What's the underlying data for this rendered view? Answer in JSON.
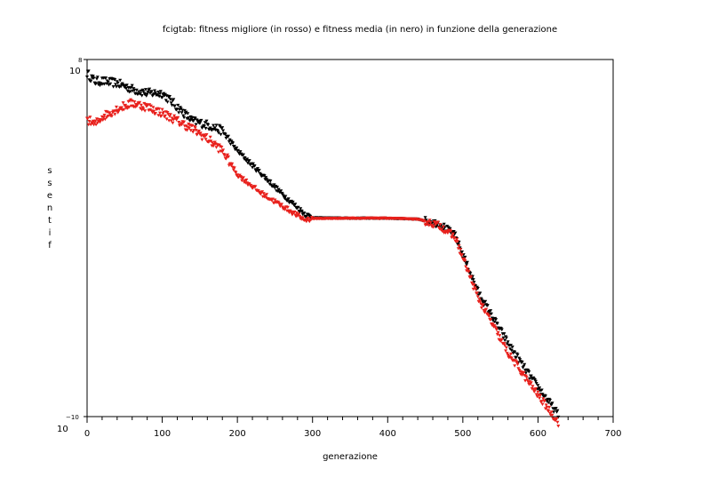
{
  "chart_data": {
    "type": "scatter",
    "title": "fcigtab: fitness migliore (in rosso) e fitness media (in nero) in funzione della generazione",
    "xlabel": "generazione",
    "ylabel": "fitness",
    "ylabel_letters": [
      "s",
      "s",
      "e",
      "n",
      "t",
      "i",
      "f"
    ],
    "xlim": [
      0,
      700
    ],
    "x_ticks": [
      "0",
      "100",
      "200",
      "300",
      "400",
      "500",
      "600",
      "700"
    ],
    "y_scale": "log",
    "ylim_exponent": [
      -10,
      8
    ],
    "y_tick_top": {
      "base": "10",
      "exponent": "8"
    },
    "y_tick_bottom": {
      "base": "10",
      "exponent": "−10"
    },
    "grid": false,
    "series": [
      {
        "color": "#000000",
        "points": [
          [
            0,
            7.3
          ],
          [
            10,
            6.9
          ],
          [
            20,
            6.9
          ],
          [
            40,
            6.8
          ],
          [
            60,
            6.5
          ],
          [
            80,
            6.3
          ],
          [
            100,
            6.3
          ],
          [
            120,
            5.6
          ],
          [
            140,
            4.9
          ],
          [
            160,
            4.7
          ],
          [
            180,
            4.4
          ],
          [
            200,
            3.4
          ],
          [
            230,
            2.3
          ],
          [
            260,
            1.2
          ],
          [
            290,
            0.2
          ],
          [
            300,
            0.02
          ],
          [
            350,
            0.0
          ],
          [
            400,
            0.0
          ],
          [
            440,
            -0.05
          ],
          [
            470,
            -0.3
          ],
          [
            490,
            -0.9
          ],
          [
            520,
            -3.7
          ],
          [
            560,
            -6.3
          ],
          [
            590,
            -8.0
          ],
          [
            627,
            -9.9
          ]
        ]
      },
      {
        "color": "#e8201c",
        "points": [
          [
            0,
            5.0
          ],
          [
            10,
            4.7
          ],
          [
            20,
            5.1
          ],
          [
            40,
            5.5
          ],
          [
            60,
            5.8
          ],
          [
            80,
            5.6
          ],
          [
            100,
            5.3
          ],
          [
            120,
            4.9
          ],
          [
            140,
            4.5
          ],
          [
            160,
            4.0
          ],
          [
            180,
            3.4
          ],
          [
            200,
            2.2
          ],
          [
            230,
            1.3
          ],
          [
            260,
            0.6
          ],
          [
            290,
            -0.1
          ],
          [
            300,
            -0.02
          ],
          [
            350,
            0.0
          ],
          [
            400,
            0.0
          ],
          [
            440,
            -0.05
          ],
          [
            470,
            -0.4
          ],
          [
            490,
            -1.0
          ],
          [
            520,
            -4.0
          ],
          [
            560,
            -6.8
          ],
          [
            590,
            -8.4
          ],
          [
            627,
            -10.3
          ]
        ]
      }
    ]
  }
}
